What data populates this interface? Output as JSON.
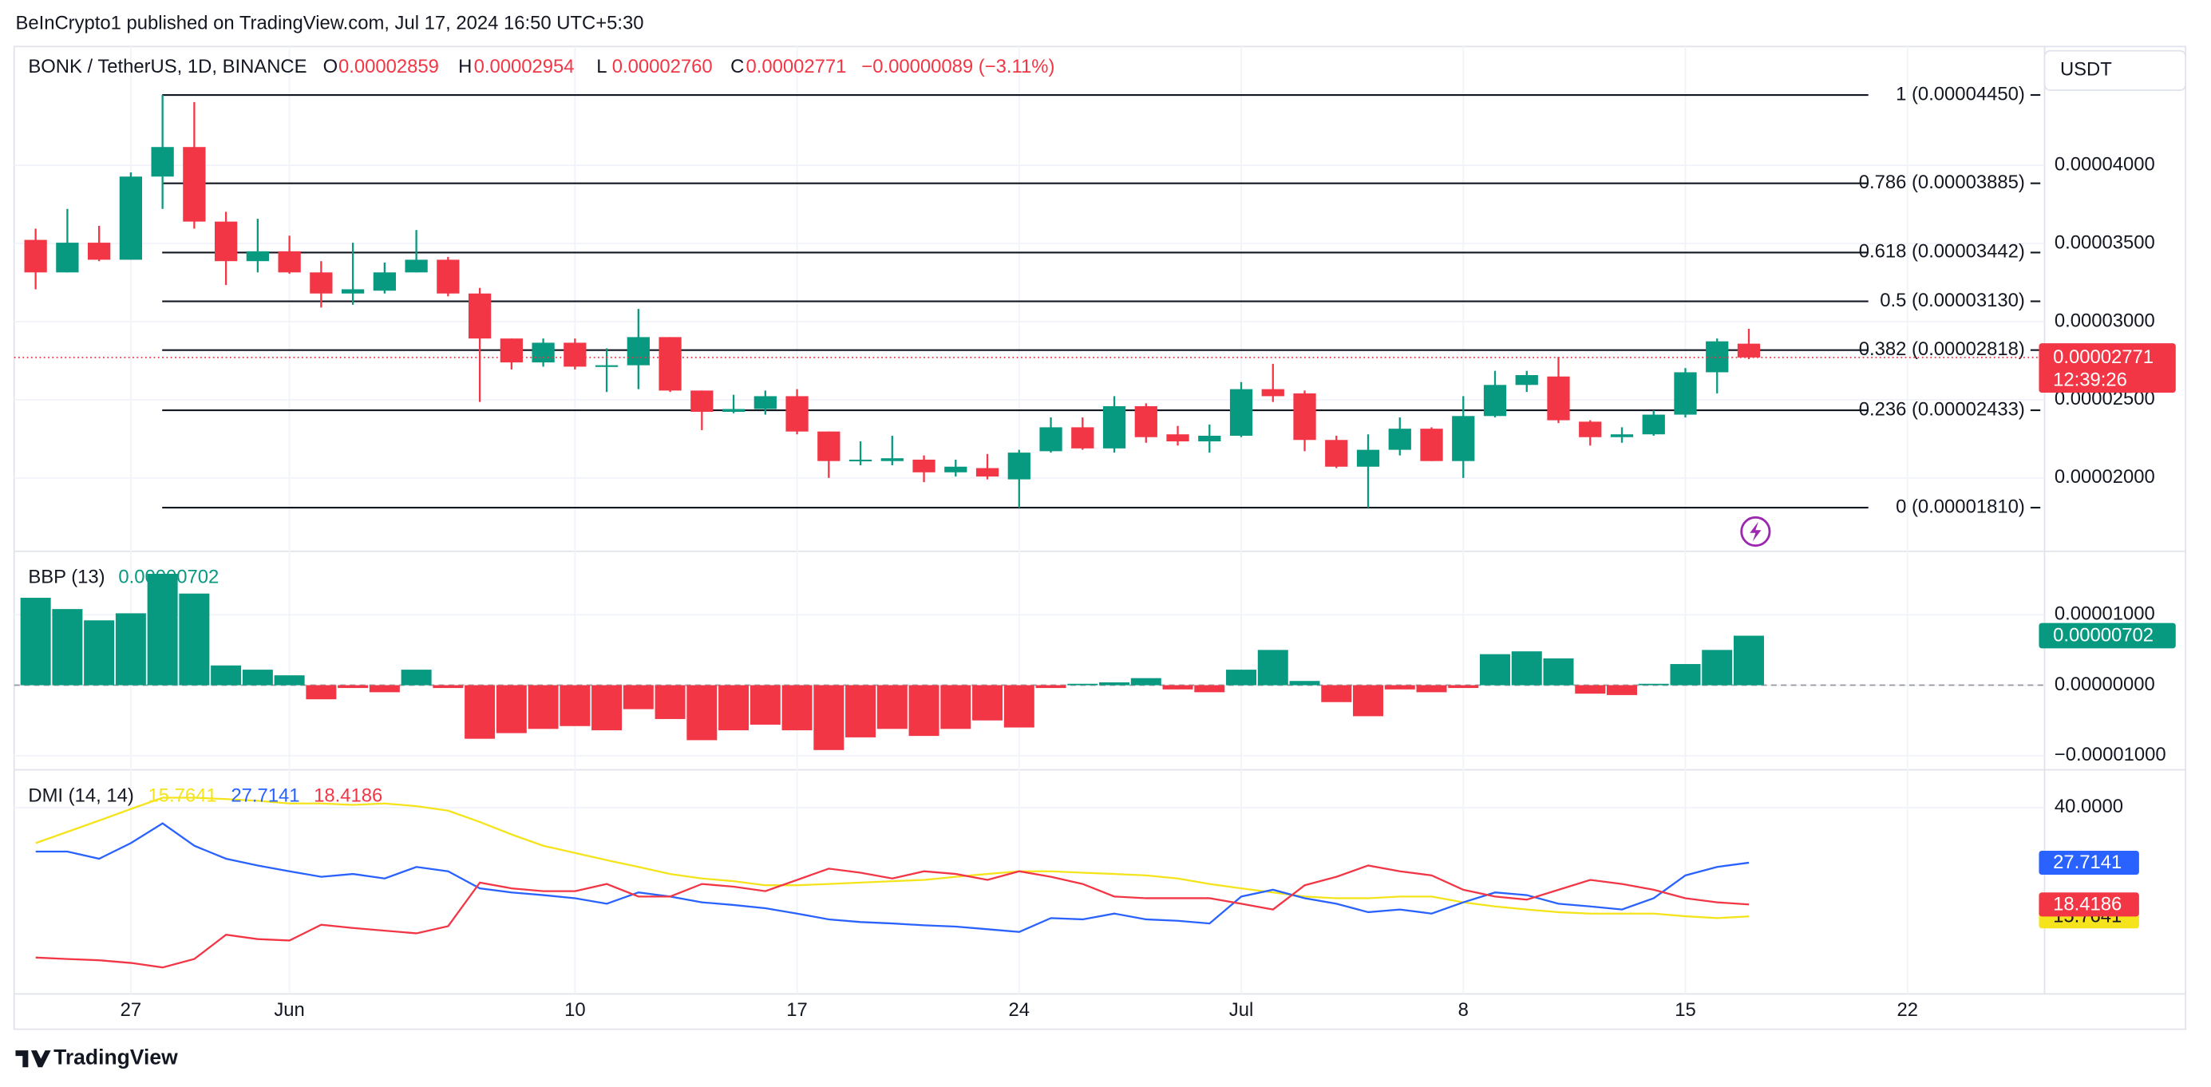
{
  "byline": "BeInCrypto1 published on TradingView.com, Jul 17, 2024 16:50 UTC+5:30",
  "currency": "USDT",
  "brand": "TradingView",
  "chart_data": [
    {
      "type": "candlestick",
      "symbol": "BONK / TetherUS, 1D, BINANCE",
      "legend": [
        {
          "key": "O",
          "value": "0.00002859"
        },
        {
          "key": "H",
          "value": "0.00002954"
        },
        {
          "key": "L",
          "value": "0.00002760"
        },
        {
          "key": "C",
          "value": "0.00002771"
        }
      ],
      "change": "−0.00000089 (−3.11%)",
      "countdown": "12:39:26",
      "colors": {
        "up": "#089981",
        "down": "#f23645"
      },
      "categories": [
        null,
        null,
        null,
        "27",
        null,
        null,
        null,
        null,
        "Jun",
        null,
        null,
        null,
        null,
        null,
        null,
        null,
        null,
        "10",
        null,
        null,
        null,
        null,
        null,
        null,
        "17",
        null,
        null,
        null,
        null,
        null,
        null,
        "24",
        null,
        null,
        null,
        null,
        null,
        null,
        "Jul",
        null,
        null,
        null,
        null,
        null,
        null,
        "8",
        null,
        null,
        null,
        null,
        null,
        null,
        "15",
        null,
        null,
        null,
        null,
        null,
        null,
        "22",
        null,
        null,
        null,
        null
      ],
      "open": [
        3.523e-05,
        3.315e-05,
        3.505e-05,
        3.396e-05,
        3.928e-05,
        4.117e-05,
        3.64e-05,
        3.387e-05,
        3.45e-05,
        3.315e-05,
        3.18e-05,
        3.198e-05,
        3.315e-05,
        3.396e-05,
        3.18e-05,
        2.892e-05,
        2.739e-05,
        2.865e-05,
        2.712e-05,
        2.721e-05,
        2.901e-05,
        2.559e-05,
        2.423e-05,
        2.441e-05,
        2.523e-05,
        2.297e-05,
        2.108e-05,
        2.108e-05,
        2.117e-05,
        2.036e-05,
        2.063e-05,
        1.991e-05,
        2.171e-05,
        2.324e-05,
        2.189e-05,
        2.459e-05,
        2.279e-05,
        2.234e-05,
        2.27e-05,
        2.568e-05,
        2.541e-05,
        2.243e-05,
        2.072e-05,
        2.18e-05,
        2.315e-05,
        2.108e-05,
        2.396e-05,
        2.595e-05,
        2.649e-05,
        2.36e-05,
        2.261e-05,
        2.279e-05,
        2.405e-05,
        2.676e-05,
        2.859e-05,
        null,
        null,
        null,
        null,
        null,
        null,
        null,
        null,
        null
      ],
      "high": [
        3.595e-05,
        3.721e-05,
        3.613e-05,
        3.955e-05,
        4.45e-05,
        4.405e-05,
        3.703e-05,
        3.658e-05,
        3.55e-05,
        3.387e-05,
        3.505e-05,
        3.378e-05,
        3.586e-05,
        3.414e-05,
        3.216e-05,
        2.892e-05,
        2.892e-05,
        2.892e-05,
        2.829e-05,
        3.081e-05,
        2.901e-05,
        2.559e-05,
        2.532e-05,
        2.559e-05,
        2.568e-05,
        2.297e-05,
        2.234e-05,
        2.27e-05,
        2.144e-05,
        2.117e-05,
        2.153e-05,
        2.18e-05,
        2.387e-05,
        2.387e-05,
        2.523e-05,
        2.477e-05,
        2.333e-05,
        2.342e-05,
        2.613e-05,
        2.73e-05,
        2.559e-05,
        2.27e-05,
        2.279e-05,
        2.387e-05,
        2.324e-05,
        2.523e-05,
        2.685e-05,
        2.685e-05,
        2.775e-05,
        2.369e-05,
        2.324e-05,
        2.432e-05,
        2.703e-05,
        2.892e-05,
        2.954e-05,
        null,
        null,
        null,
        null,
        null,
        null,
        null,
        null,
        null
      ],
      "low": [
        3.207e-05,
        3.315e-05,
        3.387e-05,
        3.396e-05,
        3.721e-05,
        3.595e-05,
        3.234e-05,
        3.315e-05,
        3.306e-05,
        3.09e-05,
        3.108e-05,
        3.18e-05,
        3.315e-05,
        3.162e-05,
        2.486e-05,
        2.694e-05,
        2.712e-05,
        2.694e-05,
        2.55e-05,
        2.568e-05,
        2.55e-05,
        2.306e-05,
        2.414e-05,
        2.405e-05,
        2.279e-05,
        2e-05,
        2.081e-05,
        2.081e-05,
        1.973e-05,
        2.009e-05,
        1.991e-05,
        1.81e-05,
        2.162e-05,
        2.18e-05,
        2.162e-05,
        2.225e-05,
        2.207e-05,
        2.162e-05,
        2.261e-05,
        2.486e-05,
        2.171e-05,
        2.063e-05,
        1.81e-05,
        2.144e-05,
        2.108e-05,
        2e-05,
        2.387e-05,
        2.55e-05,
        2.351e-05,
        2.207e-05,
        2.225e-05,
        2.27e-05,
        2.387e-05,
        2.541e-05,
        2.76e-05,
        null,
        null,
        null,
        null,
        null,
        null,
        null,
        null,
        null
      ],
      "close": [
        3.315e-05,
        3.505e-05,
        3.396e-05,
        3.928e-05,
        4.117e-05,
        3.64e-05,
        3.387e-05,
        3.45e-05,
        3.315e-05,
        3.18e-05,
        3.207e-05,
        3.315e-05,
        3.396e-05,
        3.18e-05,
        2.892e-05,
        2.739e-05,
        2.865e-05,
        2.712e-05,
        2.721e-05,
        2.901e-05,
        2.559e-05,
        2.423e-05,
        2.441e-05,
        2.523e-05,
        2.297e-05,
        2.108e-05,
        2.117e-05,
        2.126e-05,
        2.036e-05,
        2.072e-05,
        2.009e-05,
        2.162e-05,
        2.324e-05,
        2.189e-05,
        2.459e-05,
        2.261e-05,
        2.234e-05,
        2.27e-05,
        2.568e-05,
        2.523e-05,
        2.243e-05,
        2.072e-05,
        2.18e-05,
        2.315e-05,
        2.108e-05,
        2.396e-05,
        2.595e-05,
        2.658e-05,
        2.369e-05,
        2.261e-05,
        2.279e-05,
        2.405e-05,
        2.676e-05,
        2.874e-05,
        2.771e-05,
        null,
        null,
        null,
        null,
        null,
        null,
        null,
        null,
        null
      ],
      "fib_levels": [
        {
          "value": 4.45e-05,
          "label": "1 (0.00004450)"
        },
        {
          "value": 3.885e-05,
          "label": "0.786 (0.00003885)"
        },
        {
          "value": 3.442e-05,
          "label": "0.618 (0.00003442)"
        },
        {
          "value": 3.13e-05,
          "label": "0.5 (0.00003130)"
        },
        {
          "value": 2.818e-05,
          "label": "0.382 (0.00002818)"
        },
        {
          "value": 2.433e-05,
          "label": "0.236 (0.00002433)"
        },
        {
          "value": 1.81e-05,
          "label": "0 (0.00001810)"
        }
      ],
      "ylim": [
        1.54e-05,
        4.76e-05
      ],
      "yticks": [
        {
          "value": 2e-05,
          "label": "0.00002000"
        },
        {
          "value": 2.5e-05,
          "label": "0.00002500"
        },
        {
          "value": 3e-05,
          "label": "0.00003000"
        },
        {
          "value": 3.5e-05,
          "label": "0.00003500"
        },
        {
          "value": 4e-05,
          "label": "0.00004000"
        }
      ],
      "grid": true
    },
    {
      "type": "bar",
      "title": "BBP (13)",
      "colors": {
        "up": "#089981",
        "down": "#f23645"
      },
      "values": [
        1.24e-05,
        1.08e-05,
        9.2e-06,
        1.02e-05,
        1.58e-05,
        1.3e-05,
        2.8e-06,
        2.2e-06,
        1.4e-06,
        -2e-06,
        -4e-07,
        -1e-06,
        2.2e-06,
        -4e-07,
        -7.6e-06,
        -6.8e-06,
        -6.2e-06,
        -5.8e-06,
        -6.4e-06,
        -3.4e-06,
        -4.8e-06,
        -7.8e-06,
        -6.4e-06,
        -5.6e-06,
        -6.4e-06,
        -9.2e-06,
        -7.4e-06,
        -6.2e-06,
        -7.2e-06,
        -6.2e-06,
        -5e-06,
        -6e-06,
        -4e-07,
        2e-07,
        4e-07,
        1e-06,
        -6e-07,
        -1e-06,
        2.2e-06,
        5e-06,
        6e-07,
        -2.4e-06,
        -4.4e-06,
        -6e-07,
        -1e-06,
        -4e-07,
        4.4e-06,
        4.8e-06,
        3.8e-06,
        -1.2e-06,
        -1.4e-06,
        2e-07,
        3e-06,
        5e-06,
        7.02e-06
      ],
      "ylim": [
        -1.18e-05,
        1.88e-05
      ],
      "yticks": [
        {
          "value": -1e-05,
          "label": "−0.00001000"
        },
        {
          "value": 0,
          "label": "0.00000000"
        },
        {
          "value": 1e-05,
          "label": "0.00001000"
        }
      ],
      "grid": true
    },
    {
      "type": "line",
      "title": "DMI (14, 14)",
      "series": [
        {
          "color": "#f5e31b",
          "values": [
            32.1,
            34.6,
            37.1,
            39.7,
            42.2,
            42.2,
            41.9,
            41.5,
            40.9,
            40.9,
            40.6,
            40.9,
            40.3,
            39.3,
            36.8,
            34.0,
            31.5,
            29.9,
            28.3,
            26.8,
            25.2,
            24.2,
            23.6,
            22.7,
            22.7,
            23.0,
            23.3,
            23.6,
            23.9,
            24.6,
            25.2,
            25.8,
            25.8,
            25.5,
            25.2,
            24.9,
            24.2,
            23.0,
            22.0,
            21.1,
            20.2,
            19.8,
            19.8,
            20.2,
            20.2,
            18.9,
            18.0,
            17.3,
            16.7,
            16.4,
            16.4,
            16.4,
            15.8,
            15.4,
            15.7641
          ]
        },
        {
          "color": "#2962ff",
          "values": [
            30.2,
            30.2,
            28.6,
            32.1,
            36.5,
            31.5,
            28.6,
            27.1,
            25.8,
            24.6,
            25.2,
            24.2,
            26.8,
            25.8,
            22.0,
            21.1,
            20.5,
            19.8,
            18.6,
            21.1,
            20.2,
            18.9,
            18.3,
            17.6,
            16.4,
            15.1,
            14.5,
            14.2,
            13.8,
            13.5,
            12.9,
            12.3,
            15.4,
            15.1,
            16.4,
            15.1,
            14.8,
            14.2,
            20.2,
            21.7,
            19.8,
            18.6,
            16.7,
            17.3,
            16.4,
            18.9,
            21.1,
            20.5,
            18.6,
            18.0,
            17.3,
            19.8,
            24.9,
            26.8,
            27.7141
          ]
        },
        {
          "color": "#f23645",
          "values": [
            6.6,
            6.3,
            6.0,
            5.4,
            4.4,
            6.3,
            11.7,
            10.7,
            10.4,
            13.9,
            13.2,
            12.6,
            12.0,
            13.6,
            23.3,
            22.0,
            21.4,
            21.4,
            23.0,
            20.2,
            20.2,
            23.0,
            22.4,
            21.4,
            23.9,
            26.4,
            25.5,
            24.2,
            25.8,
            25.2,
            23.9,
            25.8,
            24.6,
            23.0,
            20.2,
            19.8,
            19.8,
            19.8,
            18.6,
            17.3,
            22.7,
            24.6,
            27.1,
            25.8,
            24.9,
            21.7,
            20.2,
            19.5,
            21.7,
            23.9,
            23.0,
            21.7,
            19.8,
            18.9,
            18.4186
          ]
        }
      ],
      "ylim": [
        -1.5,
        48.1
      ],
      "yticks": [
        {
          "value": 40,
          "label": "40.0000"
        }
      ],
      "grid": true
    }
  ]
}
